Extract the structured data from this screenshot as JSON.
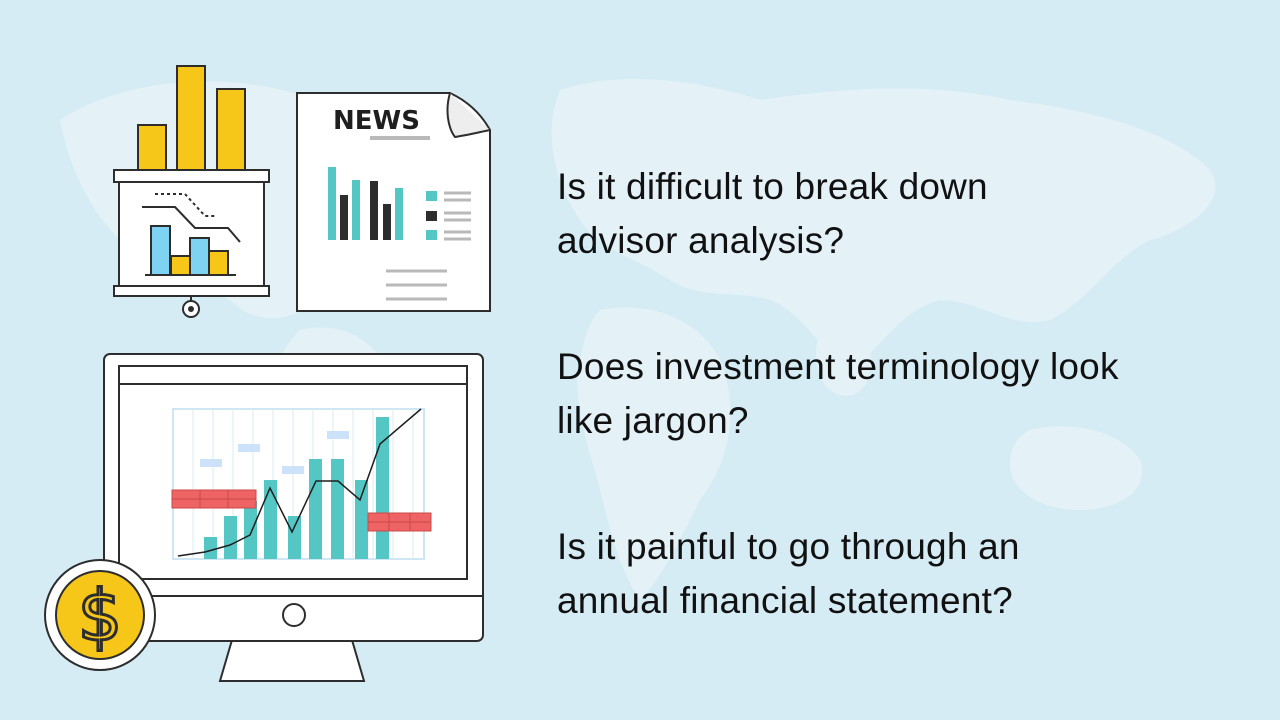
{
  "colors": {
    "background": "#d6ecf5",
    "map": "#e6f3f9",
    "text": "#111111",
    "accent_yellow": "#f6c619",
    "accent_teal": "#54c6c4",
    "accent_blue": "#7fd3f2",
    "accent_red": "#ee6363",
    "dark": "#2d2d2d"
  },
  "illustrations": {
    "newspaper_heading": "NEWS",
    "icons": [
      "presentation-board-icon",
      "newspaper-icon",
      "monitor-chart-icon",
      "dollar-coin-icon"
    ],
    "coin_symbol": "$"
  },
  "questions": [
    {
      "line1": "Is it difficult to break down",
      "line2": "advisor analysis?"
    },
    {
      "line1": "Does investment terminology look",
      "line2": "like jargon?"
    },
    {
      "line1": "Is it painful to go through an",
      "line2": "annual financial statement?"
    }
  ]
}
